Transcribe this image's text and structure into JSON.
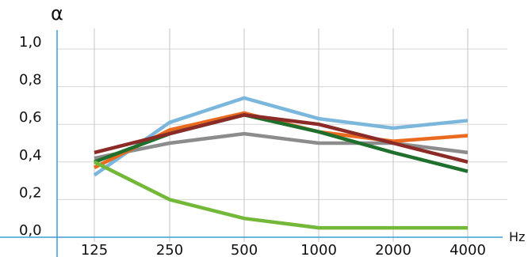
{
  "chart_data": {
    "type": "line",
    "x": [
      "125",
      "250",
      "500",
      "1000",
      "2000",
      "4000"
    ],
    "ylabel": "α",
    "xunit": "Hz",
    "ylim": [
      0,
      1.1
    ],
    "yticks": [
      "0,0",
      "0,2",
      "0,4",
      "0,6",
      "0,8",
      "1,0"
    ],
    "grid": true,
    "series": [
      {
        "color": "#7bb6dc",
        "values": [
          0.33,
          0.61,
          0.74,
          0.63,
          0.58,
          0.62
        ]
      },
      {
        "color": "#8c8c8c",
        "values": [
          0.42,
          0.5,
          0.55,
          0.5,
          0.5,
          0.45
        ]
      },
      {
        "color": "#ea6a1f",
        "values": [
          0.37,
          0.57,
          0.66,
          0.56,
          0.51,
          0.54
        ]
      },
      {
        "color": "#1f6f2d",
        "values": [
          0.4,
          0.55,
          0.65,
          0.56,
          0.45,
          0.35
        ]
      },
      {
        "color": "#8b2a26",
        "values": [
          0.45,
          0.55,
          0.65,
          0.6,
          0.5,
          0.4
        ]
      },
      {
        "color": "#74b83a",
        "values": [
          0.4,
          0.2,
          0.1,
          0.05,
          0.05,
          0.05
        ]
      }
    ],
    "axis_color": "#3d9bd6",
    "grid_color": "#d5d5d5"
  }
}
